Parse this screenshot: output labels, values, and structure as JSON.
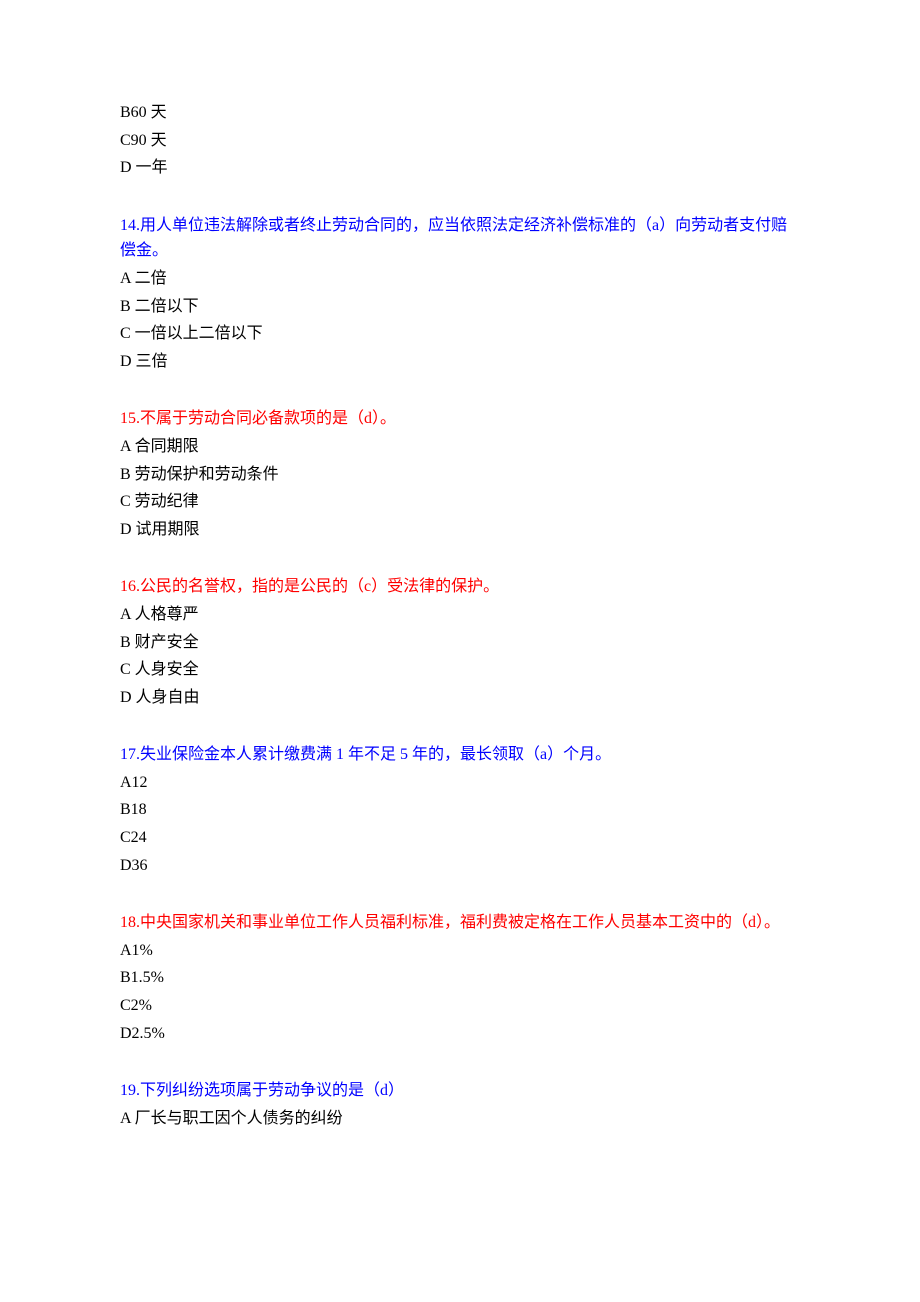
{
  "questions": [
    {
      "partial": true,
      "options": [
        "B60 天",
        "C90 天",
        "D 一年"
      ]
    },
    {
      "number": "14.",
      "text": "用人单位违法解除或者终止劳动合同的，应当依照法定经济补偿标准的（a）向劳动者支付赔偿金。",
      "color": "blue",
      "options": [
        "A 二倍",
        "B 二倍以下",
        "C 一倍以上二倍以下",
        "D 三倍"
      ]
    },
    {
      "number": "15.",
      "text": "不属于劳动合同必备款项的是（d）。",
      "color": "red",
      "options": [
        "A 合同期限",
        "B 劳动保护和劳动条件",
        "C 劳动纪律",
        "D 试用期限"
      ]
    },
    {
      "number": "16.",
      "text": "公民的名誉权，指的是公民的（c）受法律的保护。",
      "color": "red",
      "options": [
        "A 人格尊严",
        "B 财产安全",
        "C 人身安全",
        "D 人身自由"
      ]
    },
    {
      "number": "17.",
      "text": "失业保险金本人累计缴费满 1 年不足 5 年的，最长领取（a）个月。",
      "color": "blue",
      "options": [
        "A12",
        "B18",
        "C24",
        "D36"
      ]
    },
    {
      "number": "18.",
      "text": "中央国家机关和事业单位工作人员福利标准，福利费被定格在工作人员基本工资中的（d）。",
      "color": "red",
      "options": [
        "A1%",
        "B1.5%",
        "C2%",
        "D2.5%"
      ]
    },
    {
      "number": "19.",
      "text": "下列纠纷选项属于劳动争议的是（d）",
      "color": "blue",
      "options": [
        "A 厂长与职工因个人债务的纠纷"
      ]
    }
  ]
}
